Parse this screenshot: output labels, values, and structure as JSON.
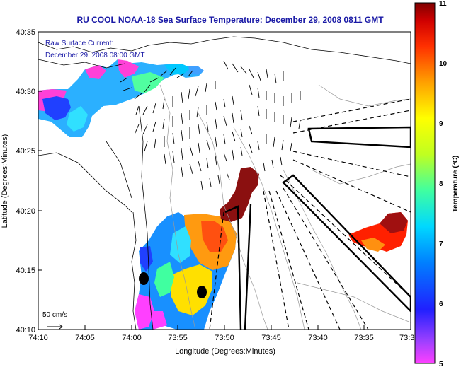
{
  "title": "RU COOL  NOAA-18  Sea Surface Temperature:  December 29, 2008 0811 GMT",
  "overlay": {
    "line1": "Raw Surface Current:",
    "line2": "December 29, 2008 08:00 GMT"
  },
  "x_axis": {
    "label": "Longitude (Degrees:Minutes)",
    "ticks": [
      "74:10",
      "74:05",
      "74:00",
      "73:55",
      "73:50",
      "73:45",
      "73:40",
      "73:35",
      "73:3"
    ]
  },
  "y_axis": {
    "label": "Latitude (Degrees:Minutes)",
    "ticks": [
      "40:35",
      "40:30",
      "40:25",
      "40:20",
      "40:15",
      "40:10"
    ]
  },
  "scale_label": "50 cm/s",
  "colorbar": {
    "label": "Temperature (°C)",
    "min": 5,
    "max": 11,
    "ticks": [
      "11",
      "10",
      "9",
      "8",
      "7",
      "6",
      "5"
    ]
  },
  "colors": {
    "title": "#1a1aa6",
    "overlay": "#1a1aa6",
    "land": "#ffffff",
    "warm": "#8b1010"
  }
}
